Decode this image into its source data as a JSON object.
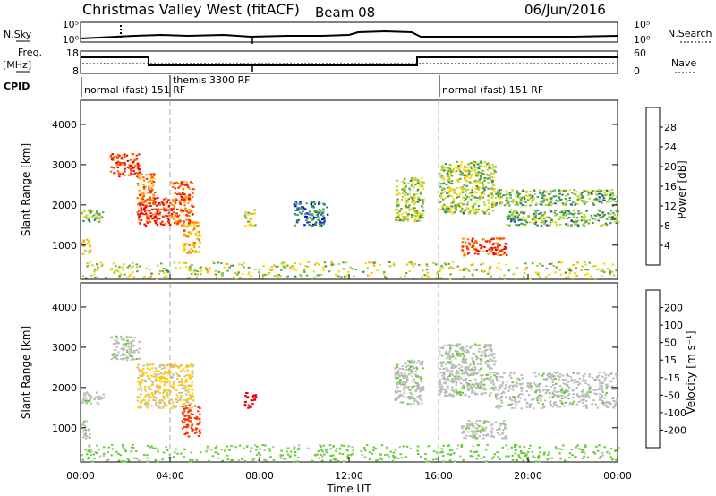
{
  "header": {
    "site": "Christmas Valley West (fitACF)",
    "beam": "Beam 08",
    "date": "06/Jun/2016"
  },
  "noise_panel": {
    "left_label": "N.Sky",
    "right_label": "N.Search",
    "left_ticks": [
      "10^5",
      "10^0"
    ],
    "right_ticks": [
      "10^5",
      "10^0"
    ]
  },
  "freq_panel": {
    "left_label_top": "Freq.",
    "left_label_bottom": "[MHz]",
    "right_label": "Nave",
    "left_ticks": [
      "18",
      "8"
    ],
    "right_ticks": [
      "60",
      "0"
    ]
  },
  "cpid": {
    "label": "CPID",
    "segments": [
      {
        "text": "normal (fast) 151 RF",
        "start": "00:00"
      },
      {
        "text": "themis 3300 RF",
        "start": "04:00"
      },
      {
        "text": "normal (fast) 151 RF",
        "start": "16:00"
      }
    ]
  },
  "time_axis": {
    "label": "Time UT",
    "ticks": [
      "00:00",
      "04:00",
      "08:00",
      "12:00",
      "16:00",
      "20:00",
      "00:00"
    ]
  },
  "chart_data": [
    {
      "type": "heatmap",
      "title": "",
      "xlabel": "Time UT",
      "ylabel": "Slant Range [km]",
      "x_range_hours": [
        0,
        24
      ],
      "ylim": [
        150,
        4600
      ],
      "y_ticks": [
        1000,
        2000,
        3000,
        4000
      ],
      "colorbar": {
        "label": "Power [dB]",
        "ticks": [
          "4",
          "8",
          "12",
          "16",
          "20",
          "24",
          "28"
        ],
        "colors": [
          "#0000ff",
          "#1f4fa8",
          "#2e8b57",
          "#5aa84a",
          "#b8d432",
          "#ffd700",
          "#ffa500",
          "#ff6a00",
          "#ff2200",
          "#ee0000"
        ]
      },
      "scatter_regions": [
        {
          "t": [
            0.0,
            0.4
          ],
          "r": [
            750,
            1200
          ],
          "value": 18
        },
        {
          "t": [
            0.0,
            1.0
          ],
          "r": [
            1600,
            1900
          ],
          "value": 12
        },
        {
          "t": [
            1.3,
            2.6
          ],
          "r": [
            2700,
            3300
          ],
          "value": 26
        },
        {
          "t": [
            2.5,
            3.3
          ],
          "r": [
            2000,
            2800
          ],
          "value": 22
        },
        {
          "t": [
            2.5,
            4.0
          ],
          "r": [
            1500,
            2200
          ],
          "value": 27
        },
        {
          "t": [
            4.0,
            5.0
          ],
          "r": [
            1500,
            2600
          ],
          "value": 24
        },
        {
          "t": [
            4.5,
            5.3
          ],
          "r": [
            800,
            1600
          ],
          "value": 20
        },
        {
          "t": [
            7.3,
            7.8
          ],
          "r": [
            1500,
            1900
          ],
          "value": 16
        },
        {
          "t": [
            9.5,
            11.0
          ],
          "r": [
            1500,
            2100
          ],
          "value": 8
        },
        {
          "t": [
            14.0,
            15.3
          ],
          "r": [
            1600,
            2700
          ],
          "value": 14
        },
        {
          "t": [
            16.0,
            18.5
          ],
          "r": [
            1800,
            3100
          ],
          "value": 14
        },
        {
          "t": [
            17.0,
            19.0
          ],
          "r": [
            750,
            1200
          ],
          "value": 25
        },
        {
          "t": [
            18.5,
            24.0
          ],
          "r": [
            2000,
            2400
          ],
          "value": 12
        },
        {
          "t": [
            19.0,
            24.0
          ],
          "r": [
            1500,
            1900
          ],
          "value": 12
        },
        {
          "t": [
            0.0,
            24.0
          ],
          "r": [
            180,
            600
          ],
          "value": 15
        }
      ]
    },
    {
      "type": "heatmap",
      "title": "",
      "xlabel": "Time UT",
      "ylabel": "Slant Range [km]",
      "x_range_hours": [
        0,
        24
      ],
      "ylim": [
        150,
        4600
      ],
      "y_ticks": [
        1000,
        2000,
        3000,
        4000
      ],
      "colorbar": {
        "label": "Velocity [m s^-1]",
        "ticks": [
          "200",
          "100",
          "50",
          "15",
          "-15",
          "-50",
          "-100",
          "-200"
        ],
        "colors": [
          "#2233aa",
          "#3366cc",
          "#2e8b57",
          "#66cc33",
          "#bbbbbb",
          "#ffcc00",
          "#ff8800",
          "#ff3300",
          "#ee0000"
        ]
      },
      "scatter_regions": [
        {
          "t": [
            0.0,
            0.4
          ],
          "r": [
            750,
            1200
          ],
          "value": 0
        },
        {
          "t": [
            0.0,
            1.0
          ],
          "r": [
            1600,
            1900
          ],
          "value": 0
        },
        {
          "t": [
            1.3,
            2.6
          ],
          "r": [
            2700,
            3300
          ],
          "value": 0
        },
        {
          "t": [
            2.5,
            5.0
          ],
          "r": [
            1500,
            2600
          ],
          "value": -40
        },
        {
          "t": [
            4.5,
            5.3
          ],
          "r": [
            800,
            1600
          ],
          "value": -150
        },
        {
          "t": [
            7.3,
            7.8
          ],
          "r": [
            1500,
            1900
          ],
          "value": -220
        },
        {
          "t": [
            14.0,
            15.3
          ],
          "r": [
            1600,
            2700
          ],
          "value": 0
        },
        {
          "t": [
            16.0,
            18.5
          ],
          "r": [
            1800,
            3100
          ],
          "value": 0
        },
        {
          "t": [
            17.0,
            19.0
          ],
          "r": [
            750,
            1200
          ],
          "value": 0
        },
        {
          "t": [
            18.5,
            24.0
          ],
          "r": [
            1500,
            2400
          ],
          "value": 0
        },
        {
          "t": [
            0.0,
            24.0
          ],
          "r": [
            180,
            600
          ],
          "value": 30
        }
      ]
    }
  ]
}
